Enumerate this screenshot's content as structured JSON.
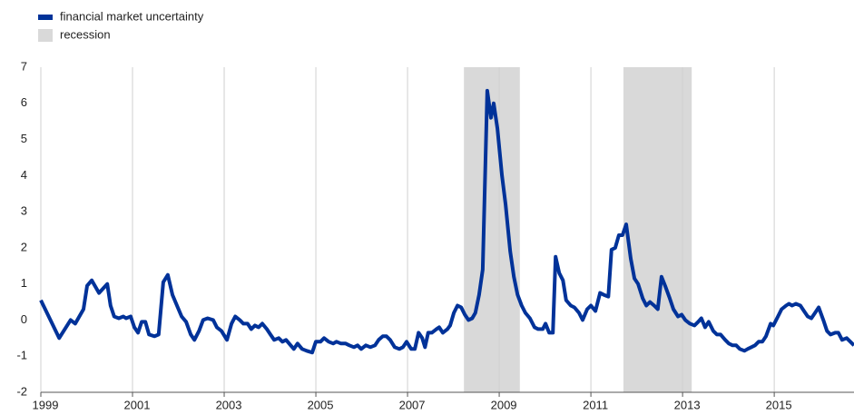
{
  "chart_data": {
    "type": "line",
    "series": [
      {
        "name": "financial market uncertainty",
        "color": "#003299",
        "x": [
          1999.0,
          1999.4,
          1999.65,
          1999.75,
          1999.93,
          2000.01,
          2000.11,
          2000.27,
          2000.45,
          2000.52,
          2000.6,
          2000.7,
          2000.8,
          2000.86,
          2000.96,
          2001.04,
          2001.12,
          2001.2,
          2001.28,
          2001.36,
          2001.48,
          2001.57,
          2001.67,
          2001.77,
          2001.87,
          2001.97,
          2002.07,
          2002.17,
          2002.27,
          2002.35,
          2002.45,
          2002.54,
          2002.64,
          2002.76,
          2002.84,
          2002.94,
          2003.06,
          2003.16,
          2003.24,
          2003.34,
          2003.42,
          2003.51,
          2003.59,
          2003.67,
          2003.75,
          2003.83,
          2003.93,
          2004.01,
          2004.09,
          2004.19,
          2004.27,
          2004.35,
          2004.45,
          2004.52,
          2004.6,
          2004.7,
          2004.8,
          2004.92,
          2005.0,
          2005.1,
          2005.18,
          2005.28,
          2005.38,
          2005.45,
          2005.55,
          2005.65,
          2005.73,
          2005.83,
          2005.91,
          2005.99,
          2006.09,
          2006.19,
          2006.29,
          2006.37,
          2006.46,
          2006.54,
          2006.62,
          2006.72,
          2006.82,
          2006.9,
          2006.98,
          2007.08,
          2007.16,
          2007.24,
          2007.32,
          2007.38,
          2007.45,
          2007.53,
          2007.63,
          2007.69,
          2007.77,
          2007.87,
          2007.93,
          2008.01,
          2008.09,
          2008.17,
          2008.25,
          2008.33,
          2008.41,
          2008.48,
          2008.56,
          2008.64,
          2008.74,
          2008.82,
          2008.88,
          2008.96,
          2009.06,
          2009.14,
          2009.24,
          2009.32,
          2009.4,
          2009.49,
          2009.57,
          2009.67,
          2009.77,
          2009.85,
          2009.95,
          2010.01,
          2010.09,
          2010.17,
          2010.23,
          2010.31,
          2010.39,
          2010.46,
          2010.56,
          2010.64,
          2010.74,
          2010.82,
          2010.92,
          2011.0,
          2011.1,
          2011.2,
          2011.28,
          2011.38,
          2011.45,
          2011.53,
          2011.61,
          2011.69,
          2011.77,
          2011.87,
          2011.95,
          2012.03,
          2012.13,
          2012.21,
          2012.29,
          2012.38,
          2012.46,
          2012.54,
          2012.62,
          2012.72,
          2012.8,
          2012.9,
          2012.98,
          2013.06,
          2013.16,
          2013.26,
          2013.34,
          2013.41,
          2013.49,
          2013.57,
          2013.67,
          2013.75,
          2013.83,
          2013.93,
          2014.01,
          2014.09,
          2014.17,
          2014.25,
          2014.35,
          2014.42,
          2014.5,
          2014.58,
          2014.66,
          2014.74,
          2014.82,
          2014.92,
          2014.98,
          2015.08,
          2015.16,
          2015.26,
          2015.32,
          2015.39,
          2015.47,
          2015.57,
          2015.65,
          2015.73,
          2015.81,
          2015.89,
          2015.97,
          2016.07,
          2016.15,
          2016.23,
          2016.33,
          2016.4,
          2016.48,
          2016.58,
          2016.66,
          2016.74
        ],
        "values": [
          0.55,
          -0.5,
          0,
          -0.1,
          0.3,
          0.95,
          1.1,
          0.75,
          1.0,
          0.4,
          0.1,
          0.05,
          0.1,
          0.05,
          0.1,
          -0.2,
          -0.35,
          -0.05,
          -0.05,
          -0.4,
          -0.45,
          -0.4,
          1.05,
          1.25,
          0.7,
          0.4,
          0.1,
          -0.05,
          -0.4,
          -0.55,
          -0.3,
          0,
          0.05,
          0,
          -0.2,
          -0.3,
          -0.55,
          -0.1,
          0.1,
          0,
          -0.1,
          -0.1,
          -0.25,
          -0.15,
          -0.2,
          -0.1,
          -0.25,
          -0.4,
          -0.55,
          -0.5,
          -0.6,
          -0.55,
          -0.7,
          -0.8,
          -0.65,
          -0.8,
          -0.85,
          -0.9,
          -0.6,
          -0.6,
          -0.5,
          -0.6,
          -0.65,
          -0.6,
          -0.65,
          -0.65,
          -0.7,
          -0.75,
          -0.7,
          -0.8,
          -0.7,
          -0.75,
          -0.7,
          -0.55,
          -0.45,
          -0.45,
          -0.55,
          -0.75,
          -0.8,
          -0.75,
          -0.6,
          -0.8,
          -0.8,
          -0.35,
          -0.5,
          -0.75,
          -0.35,
          -0.35,
          -0.25,
          -0.2,
          -0.35,
          -0.25,
          -0.15,
          0.2,
          0.4,
          0.35,
          0.15,
          0,
          0.05,
          0.2,
          0.7,
          1.4,
          6.35,
          5.6,
          6.0,
          5.3,
          4.0,
          3.2,
          1.9,
          1.2,
          0.7,
          0.4,
          0.2,
          0.05,
          -0.2,
          -0.25,
          -0.25,
          -0.1,
          -0.35,
          -0.35,
          1.75,
          1.3,
          1.1,
          0.55,
          0.4,
          0.35,
          0.2,
          0,
          0.3,
          0.4,
          0.25,
          0.75,
          0.7,
          0.65,
          1.95,
          2.0,
          2.35,
          2.35,
          2.65,
          1.7,
          1.15,
          1.0,
          0.6,
          0.4,
          0.5,
          0.4,
          0.3,
          1.2,
          0.95,
          0.6,
          0.3,
          0.1,
          0.15,
          0,
          -0.1,
          -0.15,
          -0.05,
          0.05,
          -0.2,
          -0.05,
          -0.3,
          -0.4,
          -0.4,
          -0.55,
          -0.65,
          -0.7,
          -0.7,
          -0.8,
          -0.85,
          -0.8,
          -0.75,
          -0.7,
          -0.6,
          -0.6,
          -0.45,
          -0.1,
          -0.15,
          0.1,
          0.3,
          0.4,
          0.45,
          0.4,
          0.45,
          0.4,
          0.25,
          0.1,
          0.05,
          0.2,
          0.35,
          0,
          -0.3,
          -0.4,
          -0.35,
          -0.35,
          -0.55,
          -0.5,
          -0.6,
          -0.7
        ]
      }
    ],
    "shading": {
      "name": "recession",
      "color": "#d9d9d9",
      "spans": [
        [
          2008.23,
          2009.45
        ],
        [
          2011.71,
          2013.2
        ]
      ]
    },
    "xlim": [
      1999,
      2016.74
    ],
    "xticks": [
      1999,
      2001,
      2003,
      2005,
      2007,
      2009,
      2011,
      2013,
      2015
    ],
    "ylim": [
      -2,
      7
    ],
    "yticks": [
      -2,
      -1,
      0,
      1,
      2,
      3,
      4,
      5,
      6,
      7
    ],
    "grid": "x",
    "legend": "top-left"
  }
}
